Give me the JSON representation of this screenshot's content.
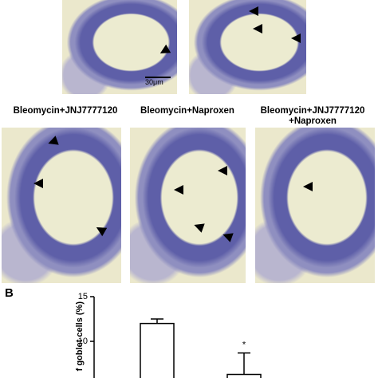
{
  "micrograph_labels": [
    "Bleomycin+JNJ7777120",
    "Bleomycin+Naproxen",
    [
      "Bleomycin+JNJ7777120",
      "+Naproxen"
    ]
  ],
  "scale_bar": "30μm",
  "panel_letter": "B",
  "chart_data": {
    "type": "bar",
    "y_label": "f goblet cells (%)",
    "categories": [
      null,
      null
    ],
    "values": [
      12,
      6.3
    ],
    "errors": [
      0.5,
      2.4
    ],
    "annotations": [
      null,
      "*"
    ],
    "ylim": [
      5.9,
      15
    ],
    "yticks": [
      10,
      15
    ]
  }
}
